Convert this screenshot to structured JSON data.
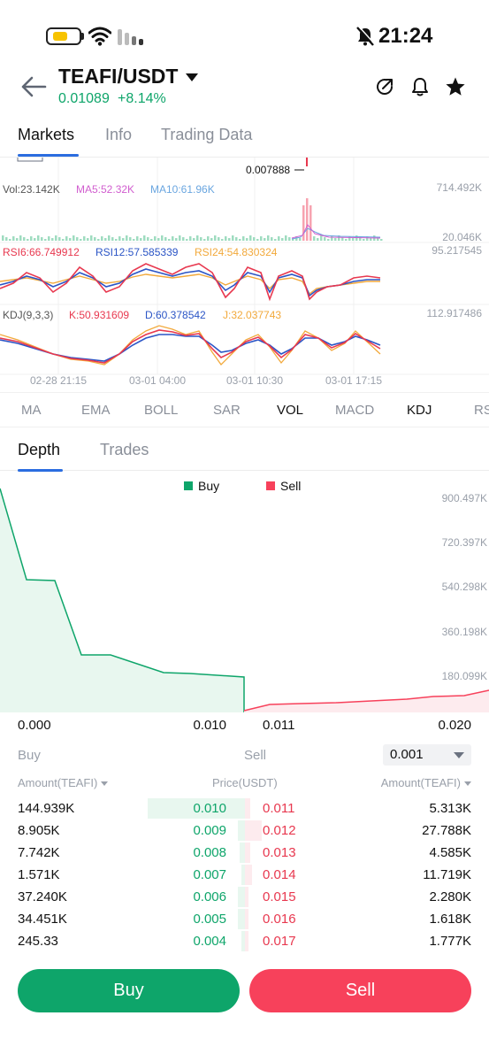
{
  "status_bar": {
    "time": "21:24",
    "icons": [
      "battery-icon",
      "wifi-icon",
      "signal-icon",
      "mute-icon"
    ]
  },
  "header": {
    "pair": "TEAFI/USDT",
    "last_price": "0.01089",
    "change": "+8.14%",
    "icons": [
      "back-arrow-icon",
      "share-icon",
      "bell-icon",
      "star-icon"
    ]
  },
  "main_tabs": [
    "Markets",
    "Info",
    "Trading Data"
  ],
  "kline": {
    "price_marker": "0.007888",
    "volume": {
      "vol": "Vol:23.142K",
      "ma5": "MA5:52.32K",
      "ma10": "MA10:61.96K",
      "axis_top": "714.492K",
      "axis_bottom": "20.046K"
    },
    "rsi": {
      "rsi6": "RSI6:66.749912",
      "rsi12": "RSI12:57.585339",
      "rsi24": "RSI24:54.830324",
      "axis_top": "95.217545"
    },
    "kdj": {
      "label": "KDJ(9,3,3)",
      "k": "K:50.931609",
      "d": "D:60.378542",
      "j": "J:32.037743",
      "axis_top": "112.917486"
    },
    "time_labels": [
      "02-28 21:15",
      "03-01 04:00",
      "03-01 10:30",
      "03-01 17:15"
    ],
    "colors": {
      "ma5": "#d15ecf",
      "ma10": "#6aa6e0",
      "rsi6": "#e8384f",
      "rsi12": "#2b55c6",
      "rsi24": "#f2a93b"
    }
  },
  "indicator_tabs": [
    "MA",
    "EMA",
    "BOLL",
    "SAR",
    "VOL",
    "MACD",
    "KDJ",
    "RSI"
  ],
  "depth_tabs": [
    "Depth",
    "Trades"
  ],
  "depth_chart": {
    "legend_buy": "Buy",
    "legend_sell": "Sell",
    "y_labels": [
      "900.497K",
      "720.397K",
      "540.298K",
      "360.198K",
      "180.099K"
    ],
    "x_labels": [
      "0.000",
      "0.010",
      "0.011",
      "0.020"
    ],
    "colors": {
      "buy": "#0ea56a",
      "sell": "#f7415b"
    }
  },
  "order_book": {
    "buy_label": "Buy",
    "sell_label": "Sell",
    "precision": "0.001",
    "col_amount_left": "Amount(TEAFI)",
    "col_price": "Price(USDT)",
    "col_amount_right": "Amount(TEAFI)",
    "rows": [
      {
        "bid_amount": "144.939K",
        "bid_price": "0.010",
        "ask_price": "0.011",
        "ask_amount": "5.313K",
        "bid_depth": 0.4,
        "ask_depth": 0.02
      },
      {
        "bid_amount": "8.905K",
        "bid_price": "0.009",
        "ask_price": "0.012",
        "ask_amount": "27.788K",
        "bid_depth": 0.03,
        "ask_depth": 0.07
      },
      {
        "bid_amount": "7.742K",
        "bid_price": "0.008",
        "ask_price": "0.013",
        "ask_amount": "4.585K",
        "bid_depth": 0.02,
        "ask_depth": 0.02
      },
      {
        "bid_amount": "1.571K",
        "bid_price": "0.007",
        "ask_price": "0.014",
        "ask_amount": "11.719K",
        "bid_depth": 0.01,
        "ask_depth": 0.03
      },
      {
        "bid_amount": "37.240K",
        "bid_price": "0.006",
        "ask_price": "0.015",
        "ask_amount": "2.280K",
        "bid_depth": 0.03,
        "ask_depth": 0.01
      },
      {
        "bid_amount": "34.451K",
        "bid_price": "0.005",
        "ask_price": "0.016",
        "ask_amount": "1.618K",
        "bid_depth": 0.03,
        "ask_depth": 0.01
      },
      {
        "bid_amount": "245.33",
        "bid_price": "0.004",
        "ask_price": "0.017",
        "ask_amount": "1.777K",
        "bid_depth": 0.01,
        "ask_depth": 0.01
      }
    ]
  },
  "actions": {
    "buy": "Buy",
    "sell": "Sell"
  }
}
